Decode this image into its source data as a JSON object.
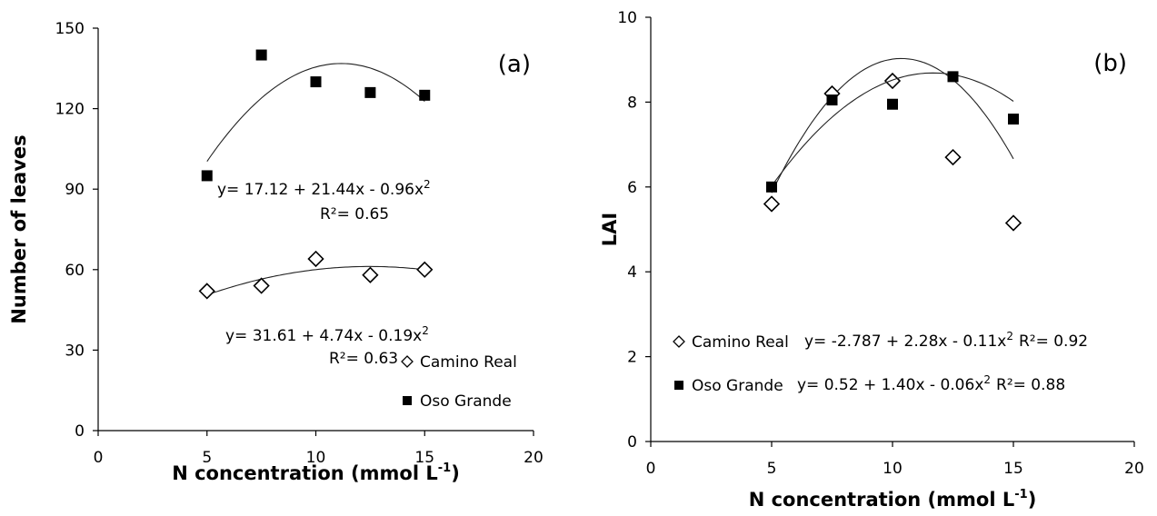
{
  "chart_data": [
    {
      "type": "scatter",
      "panel_label": "(a)",
      "xlabel": "N concentration (mmol L",
      "xlabel_sup": "-1",
      "xlabel_end": ")",
      "ylabel": "Number of leaves",
      "xlim": [
        0,
        20
      ],
      "ylim": [
        0,
        150
      ],
      "xticks": [
        "0",
        "5",
        "10",
        "15",
        "20"
      ],
      "yticks": [
        "0",
        "30",
        "60",
        "90",
        "120",
        "150"
      ],
      "grid": false,
      "legend_position": "bottom-right",
      "series": [
        {
          "name": "Camino Real",
          "marker": "open-diamond",
          "x": [
            5,
            7.5,
            10,
            12.5,
            15
          ],
          "y": [
            52,
            54,
            64,
            58,
            60
          ],
          "fit": {
            "a": 31.61,
            "b": 4.74,
            "c": -0.19
          },
          "equation": "y= 31.61 + 4.74x - 0.19x",
          "r2": "R²= 0.63"
        },
        {
          "name": "Oso Grande",
          "marker": "filled-square",
          "x": [
            5,
            7.5,
            10,
            12.5,
            15
          ],
          "y": [
            95,
            140,
            130,
            126,
            125
          ],
          "fit": {
            "a": 17.12,
            "b": 21.44,
            "c": -0.96
          },
          "equation": "y= 17.12 + 21.44x - 0.96x",
          "r2": "R²= 0.65"
        }
      ]
    },
    {
      "type": "scatter",
      "panel_label": "(b)",
      "xlabel": "N concentration (mmol L",
      "xlabel_sup": "-1",
      "xlabel_end": ")",
      "ylabel": "LAI",
      "xlim": [
        0,
        20
      ],
      "ylim": [
        0,
        10
      ],
      "xticks": [
        "0",
        "5",
        "10",
        "15",
        "20"
      ],
      "yticks": [
        "0",
        "2",
        "4",
        "6",
        "8",
        "10"
      ],
      "grid": false,
      "legend_position": "bottom-left",
      "series": [
        {
          "name": "Camino Real",
          "marker": "open-diamond",
          "x": [
            5,
            7.5,
            10,
            12.5,
            15
          ],
          "y": [
            5.6,
            8.2,
            8.5,
            6.7,
            5.15
          ],
          "fit": {
            "a": -2.787,
            "b": 2.28,
            "c": -0.11
          },
          "equation": "y= -2.787 + 2.28x - 0.11x",
          "r2": "R²= 0.92"
        },
        {
          "name": "Oso Grande",
          "marker": "filled-square",
          "x": [
            5,
            7.5,
            10,
            12.5,
            15
          ],
          "y": [
            6.0,
            8.05,
            7.95,
            8.6,
            7.6
          ],
          "fit": {
            "a": 0.52,
            "b": 1.4,
            "c": -0.06
          },
          "equation": "y= 0.52 + 1.40x - 0.06x",
          "r2": "R²= 0.88"
        }
      ]
    }
  ]
}
